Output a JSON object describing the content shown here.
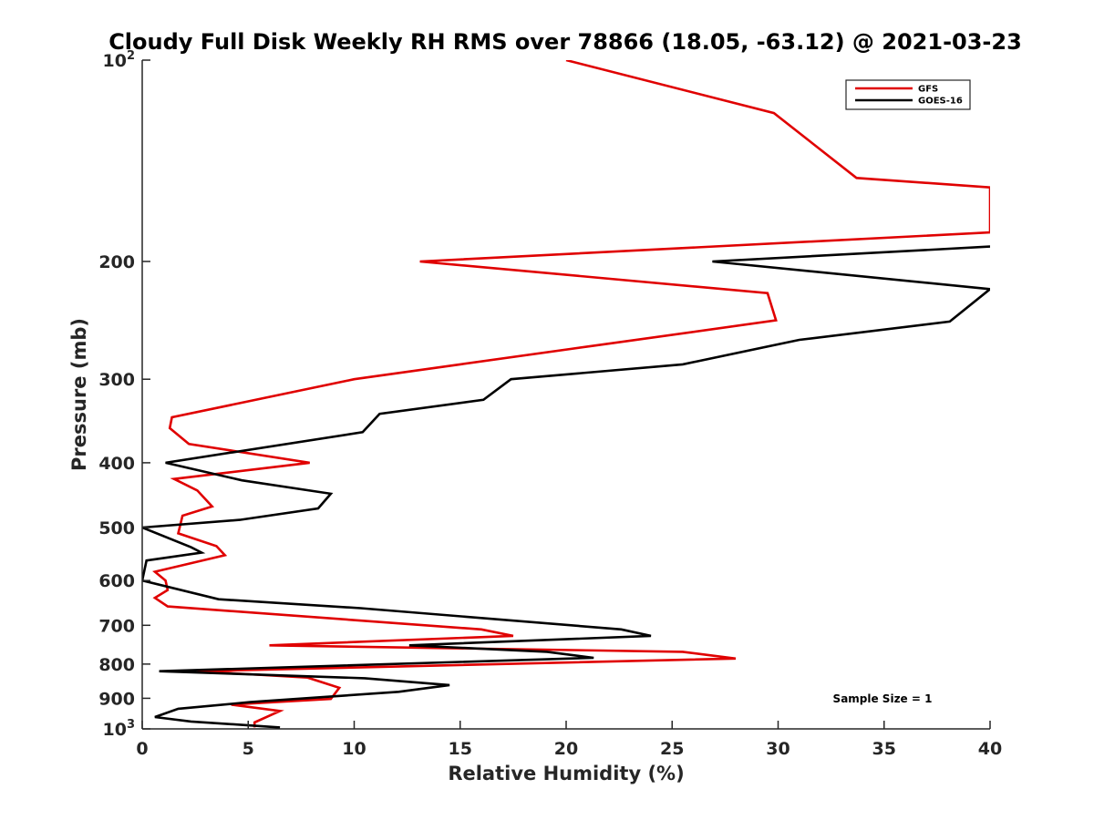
{
  "chart_data": {
    "type": "line",
    "title": "Cloudy Full Disk Weekly RH RMS over 78866 (18.05, -63.12) @ 2021-03-23",
    "xlabel": "Relative Humidity (%)",
    "ylabel": "Pressure (mb)",
    "xlim": [
      0,
      40
    ],
    "ylim": [
      100,
      1000
    ],
    "yscale": "log",
    "yreversed": true,
    "x_ticks": [
      0,
      5,
      10,
      15,
      20,
      25,
      30,
      35,
      40
    ],
    "x_tick_labels": [
      "0",
      "5",
      "10",
      "15",
      "20",
      "25",
      "30",
      "35",
      "40"
    ],
    "y_ticks": [
      {
        "value": 100,
        "base": "10",
        "exp": "2"
      },
      {
        "value": 200,
        "label": "200"
      },
      {
        "value": 300,
        "label": "300"
      },
      {
        "value": 400,
        "label": "400"
      },
      {
        "value": 500,
        "label": "500"
      },
      {
        "value": 600,
        "label": "600"
      },
      {
        "value": 700,
        "label": "700"
      },
      {
        "value": 800,
        "label": "800"
      },
      {
        "value": 900,
        "label": "900"
      },
      {
        "value": 1000,
        "base": "10",
        "exp": "3"
      }
    ],
    "legend_position": "top-right",
    "annotation": "Sample Size = 1",
    "series": [
      {
        "name": "GFS",
        "color": "#e00000",
        "points": [
          [
            20,
            100
          ],
          [
            29.8,
            120
          ],
          [
            33.7,
            150
          ],
          [
            40,
            155
          ],
          [
            40,
            181
          ],
          [
            13.1,
            200
          ],
          [
            29.5,
            223
          ],
          [
            29.9,
            245
          ],
          [
            15,
            285
          ],
          [
            10,
            300
          ],
          [
            1.4,
            342
          ],
          [
            1.3,
            355
          ],
          [
            2.2,
            375
          ],
          [
            7.9,
            400
          ],
          [
            1.5,
            423
          ],
          [
            2.6,
            440
          ],
          [
            3.3,
            465
          ],
          [
            1.9,
            480
          ],
          [
            1.7,
            510
          ],
          [
            3.5,
            533
          ],
          [
            3.9,
            550
          ],
          [
            0.6,
            582
          ],
          [
            1.1,
            600
          ],
          [
            1.2,
            620
          ],
          [
            0.6,
            637
          ],
          [
            1.2,
            656
          ],
          [
            16,
            710
          ],
          [
            17.5,
            726
          ],
          [
            6,
            750
          ],
          [
            25.5,
            767
          ],
          [
            28,
            785
          ],
          [
            2.6,
            820
          ],
          [
            7.8,
            838
          ],
          [
            9.3,
            868
          ],
          [
            8.9,
            902
          ],
          [
            4.2,
            920
          ],
          [
            6.5,
            940
          ],
          [
            5.3,
            978
          ],
          [
            5.3,
            995
          ]
        ]
      },
      {
        "name": "GOES-16",
        "color": "#000000",
        "points": [
          [
            40,
            190
          ],
          [
            26.9,
            200
          ],
          [
            40,
            220
          ],
          [
            38.1,
            246
          ],
          [
            31,
            262
          ],
          [
            25.5,
            285
          ],
          [
            17.4,
            300
          ],
          [
            16.1,
            322
          ],
          [
            11.2,
            338
          ],
          [
            10.4,
            360
          ],
          [
            1.1,
            400
          ],
          [
            4.7,
            425
          ],
          [
            8.9,
            445
          ],
          [
            8.3,
            468
          ],
          [
            4.6,
            487
          ],
          [
            0,
            500
          ],
          [
            2.3,
            535
          ],
          [
            2.8,
            545
          ],
          [
            0.2,
            560
          ],
          [
            0,
            600
          ],
          [
            3.6,
            640
          ],
          [
            10.3,
            660
          ],
          [
            22.6,
            710
          ],
          [
            24,
            726
          ],
          [
            12.6,
            750
          ],
          [
            19.1,
            767
          ],
          [
            21.3,
            783
          ],
          [
            0.8,
            820
          ],
          [
            10.5,
            840
          ],
          [
            14.5,
            860
          ],
          [
            12.1,
            880
          ],
          [
            5.1,
            912
          ],
          [
            1.7,
            933
          ],
          [
            0.6,
            960
          ],
          [
            2.3,
            975
          ],
          [
            6.5,
            995
          ]
        ]
      }
    ]
  }
}
